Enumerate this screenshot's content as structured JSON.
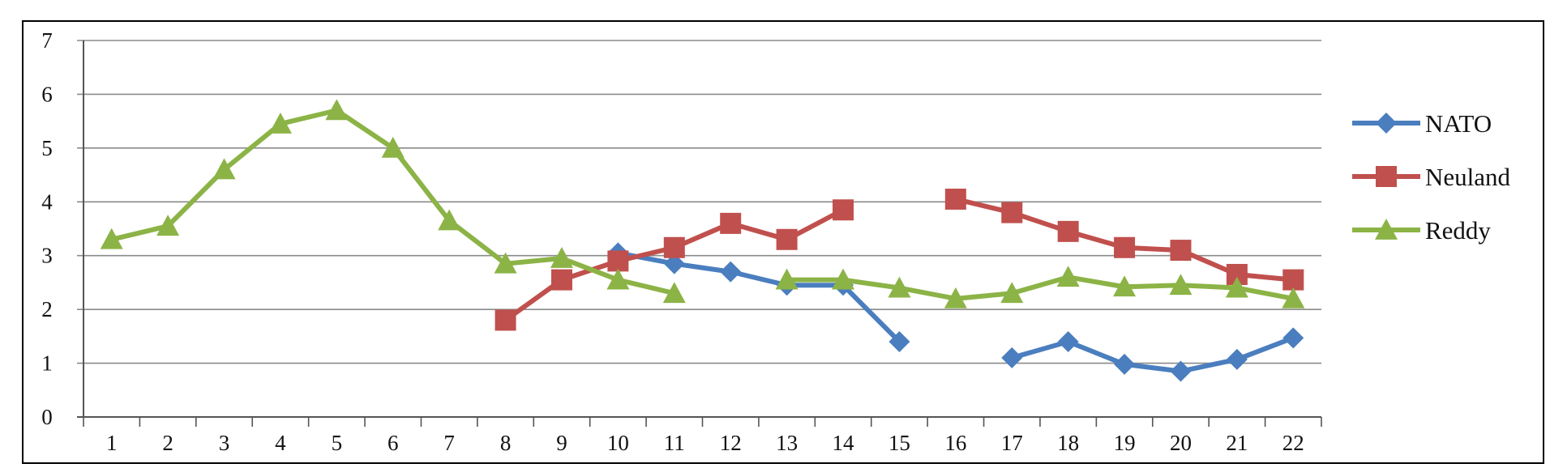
{
  "chart_data": {
    "type": "line",
    "title": "",
    "xlabel": "",
    "ylabel": "",
    "categories": [
      "1",
      "2",
      "3",
      "4",
      "5",
      "6",
      "7",
      "8",
      "9",
      "10",
      "11",
      "12",
      "13",
      "14",
      "15",
      "16",
      "17",
      "18",
      "19",
      "20",
      "21",
      "22"
    ],
    "ylim": [
      0,
      7
    ],
    "yticks": [
      "0",
      "1",
      "2",
      "3",
      "4",
      "5",
      "6",
      "7"
    ],
    "grid": "horizontal",
    "legend_position": "right",
    "series": [
      {
        "name": "NATO",
        "color": "#4a7ebf",
        "marker": "diamond",
        "values": [
          null,
          null,
          null,
          null,
          null,
          null,
          null,
          null,
          null,
          3.05,
          2.85,
          2.7,
          2.45,
          2.45,
          1.4,
          null,
          1.1,
          1.4,
          0.98,
          0.85,
          1.07,
          1.47
        ]
      },
      {
        "name": "Neuland",
        "color": "#c0504d",
        "marker": "square",
        "values": [
          null,
          null,
          null,
          null,
          null,
          null,
          null,
          1.8,
          2.55,
          2.9,
          3.15,
          3.6,
          3.3,
          3.85,
          null,
          4.05,
          3.8,
          3.45,
          3.15,
          3.1,
          2.65,
          2.55
        ]
      },
      {
        "name": "Reddy",
        "color": "#8cb346",
        "marker": "triangle",
        "values": [
          3.3,
          3.55,
          4.6,
          5.45,
          5.7,
          5.0,
          3.65,
          2.85,
          2.95,
          2.55,
          2.3,
          null,
          2.55,
          2.55,
          2.4,
          2.2,
          2.3,
          2.6,
          2.42,
          2.45,
          2.4,
          2.2
        ]
      }
    ]
  }
}
